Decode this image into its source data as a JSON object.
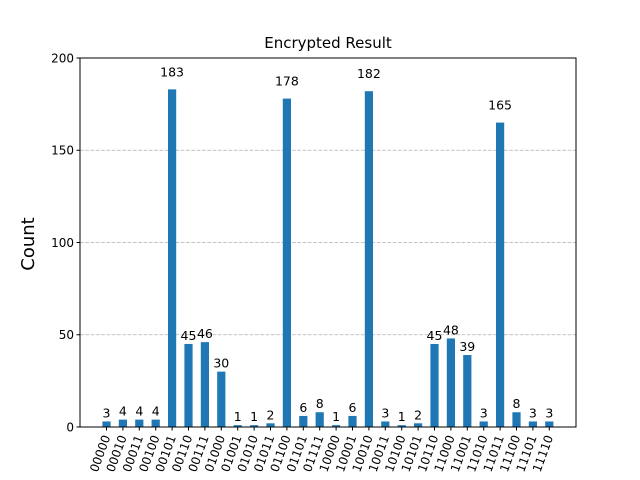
{
  "chart_data": {
    "type": "bar",
    "title": "Encrypted Result",
    "xlabel": "",
    "ylabel": "Count",
    "ylim": [
      0,
      200
    ],
    "yticks": [
      0,
      50,
      100,
      150,
      200
    ],
    "grid": "horizontal dashed",
    "bar_color": "#1f77b4",
    "categories": [
      "00000",
      "00010",
      "00011",
      "00100",
      "00101",
      "00110",
      "00111",
      "01000",
      "01001",
      "01010",
      "01011",
      "01100",
      "01101",
      "01111",
      "10000",
      "10001",
      "10010",
      "10011",
      "10100",
      "10101",
      "10110",
      "11000",
      "11001",
      "11010",
      "11011",
      "11100",
      "11101",
      "11110"
    ],
    "values": [
      3,
      4,
      4,
      4,
      183,
      45,
      46,
      30,
      1,
      1,
      2,
      178,
      6,
      8,
      1,
      6,
      182,
      3,
      1,
      2,
      45,
      48,
      39,
      3,
      165,
      8,
      3,
      3
    ]
  }
}
